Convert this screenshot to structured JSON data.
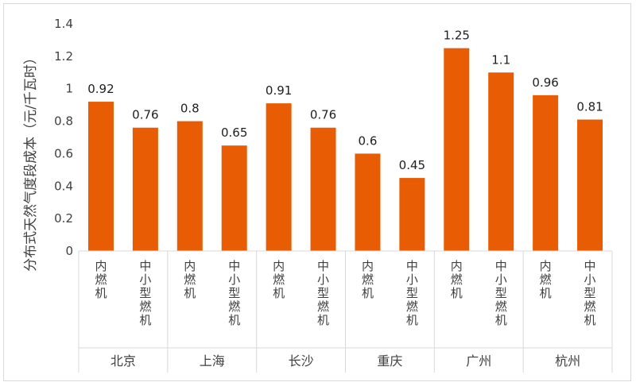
{
  "chart_data": {
    "type": "bar",
    "title": "",
    "ylabel": "分布式天然气度段成本（元/千瓦时）",
    "ylim": [
      0,
      1.4
    ],
    "yticks": [
      "0",
      "0.2",
      "0.4",
      "0.6",
      "0.8",
      "1",
      "1.2",
      "1.4"
    ],
    "grid": false,
    "legend": "none",
    "color": "#E85D04",
    "groups": [
      {
        "name": "北京",
        "bars": [
          {
            "label": "内燃机",
            "value": 0.92,
            "text": "0.92"
          },
          {
            "label": "中小型燃机",
            "value": 0.76,
            "text": "0.76"
          }
        ]
      },
      {
        "name": "上海",
        "bars": [
          {
            "label": "内燃机",
            "value": 0.8,
            "text": "0.8"
          },
          {
            "label": "中小型燃机",
            "value": 0.65,
            "text": "0.65"
          }
        ]
      },
      {
        "name": "长沙",
        "bars": [
          {
            "label": "内燃机",
            "value": 0.91,
            "text": "0.91"
          },
          {
            "label": "中小型燃机",
            "value": 0.76,
            "text": "0.76"
          }
        ]
      },
      {
        "name": "重庆",
        "bars": [
          {
            "label": "内燃机",
            "value": 0.6,
            "text": "0.6"
          },
          {
            "label": "中小型燃机",
            "value": 0.45,
            "text": "0.45"
          }
        ]
      },
      {
        "name": "广州",
        "bars": [
          {
            "label": "内燃机",
            "value": 1.25,
            "text": "1.25"
          },
          {
            "label": "中小型燃机",
            "value": 1.1,
            "text": "1.1"
          }
        ]
      },
      {
        "name": "杭州",
        "bars": [
          {
            "label": "内燃机",
            "value": 0.96,
            "text": "0.96"
          },
          {
            "label": "中小型燃机",
            "value": 0.81,
            "text": "0.81"
          }
        ]
      }
    ]
  }
}
